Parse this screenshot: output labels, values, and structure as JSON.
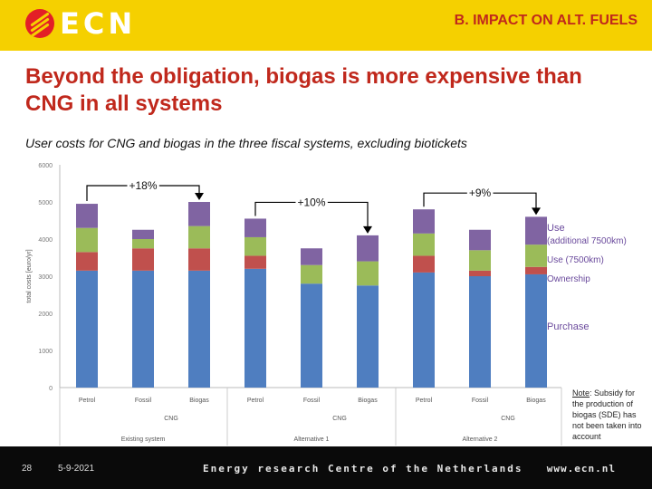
{
  "header": {
    "logo_text": "ECN",
    "section": "B. IMPACT ON ALT. FUELS"
  },
  "title": "Beyond the obligation, biogas is more expensive than CNG in all systems",
  "subtitle": "User costs for CNG and biogas in the three fiscal systems, excluding biotickets",
  "chart_data": {
    "type": "bar",
    "stacked": true,
    "ylabel": "total costs [euro/yr]",
    "ylim": [
      0,
      6000
    ],
    "yticks": [
      0,
      1000,
      2000,
      3000,
      4000,
      5000,
      6000
    ],
    "categories": [
      "Petrol",
      "Fossil",
      "Biogas",
      "Petrol",
      "Fossil",
      "Biogas",
      "Petrol",
      "Fossil",
      "Biogas"
    ],
    "groups": [
      {
        "label": "CNG",
        "start": 1,
        "end": 2
      },
      {
        "label": "CNG",
        "start": 4,
        "end": 5
      },
      {
        "label": "CNG",
        "start": 7,
        "end": 8
      }
    ],
    "systems": [
      {
        "label": "Existing system",
        "start": 0,
        "end": 2
      },
      {
        "label": "Alternative 1",
        "start": 3,
        "end": 5
      },
      {
        "label": "Alternative 2",
        "start": 6,
        "end": 8
      }
    ],
    "series": [
      {
        "name": "Purchase",
        "color": "#4f7ec0",
        "values": [
          3150,
          3150,
          3150,
          3200,
          2800,
          2750,
          3100,
          3000,
          3050
        ]
      },
      {
        "name": "Ownership",
        "color": "#c0504d",
        "values": [
          500,
          600,
          600,
          350,
          0,
          0,
          450,
          150,
          200
        ]
      },
      {
        "name": "Use (7500km)",
        "color": "#9bbb59",
        "values": [
          650,
          250,
          600,
          500,
          500,
          650,
          600,
          550,
          600
        ]
      },
      {
        "name": "Use (additional 7500km)",
        "color": "#8064a2",
        "values": [
          650,
          250,
          650,
          500,
          450,
          700,
          650,
          550,
          750
        ]
      }
    ],
    "legend_labels": {
      "use_add_line1": "Use",
      "use_add_line2": "(additional 7500km)",
      "use": "Use (7500km)",
      "ownership": "Ownership",
      "purchase": "Purchase"
    },
    "annotations": [
      {
        "label": "+18%",
        "from": 0,
        "to": 2
      },
      {
        "label": "+10%",
        "from": 3,
        "to": 5
      },
      {
        "label": "+9%",
        "from": 6,
        "to": 8
      }
    ]
  },
  "note": {
    "prefix": "Note",
    "text": ": Subsidy for the production of biogas (SDE) has not been taken into account"
  },
  "footer": {
    "page": "28",
    "date": "5-9-2021",
    "org": "Energy research Centre of the Netherlands",
    "url": "www.ecn.nl"
  }
}
